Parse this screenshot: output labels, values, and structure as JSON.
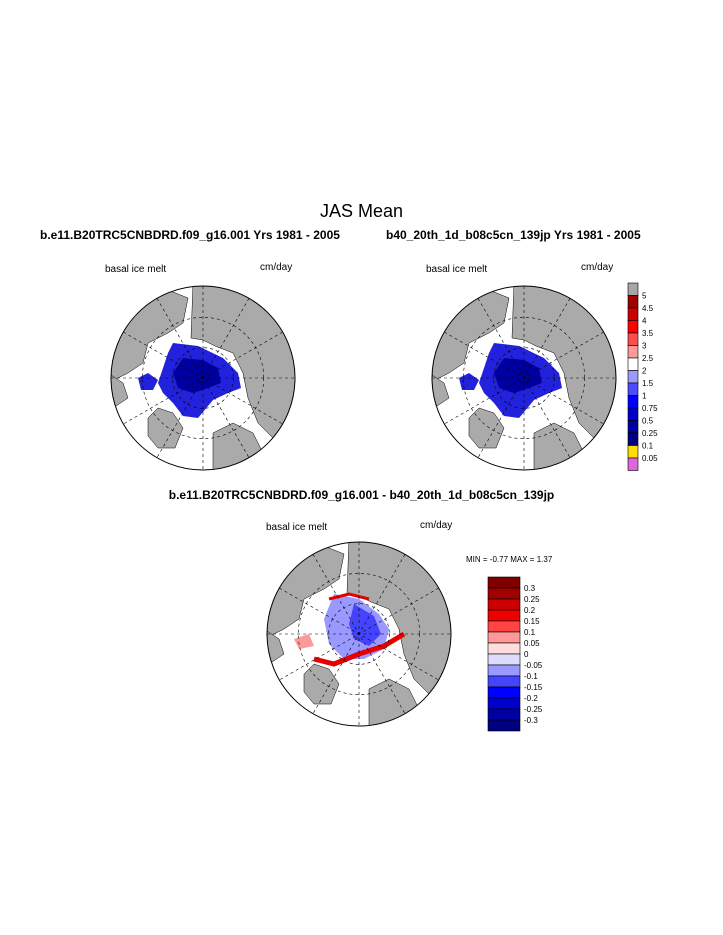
{
  "main_title": "JAS Mean",
  "left_case": "b.e11.B20TRC5CNBDRD.f09_g16.001  Yrs 1981 - 2005",
  "right_case": "b40_20th_1d_b08c5cn_139jp  Yrs 1981 - 2005",
  "var_name": "basal ice melt",
  "units": "cm/day",
  "diff_title": "b.e11.B20TRC5CNBDRD.f09_g16.001 - b40_20th_1d_b08c5cn_139jp",
  "minmax_text": "MIN =  -0.77 MAX =   1.37",
  "colors": {
    "land": "#aaaaaa",
    "ocean": "#ffffff",
    "ice_deep": "#2222dd",
    "ice_dark": "#0000a0",
    "diff_pos": "#e60000",
    "diff_neg": "#4444ff"
  },
  "colorbar_main": {
    "labels": [
      "5",
      "4.5",
      "4",
      "3.5",
      "3",
      "2.5",
      "2",
      "1.5",
      "1",
      "0.75",
      "0.5",
      "0.25",
      "0.1",
      "0.05"
    ],
    "colors": [
      "#a6a6a6",
      "#a00000",
      "#cc0000",
      "#ff0000",
      "#ff4c4c",
      "#ff9999",
      "#ffffff",
      "#9999ff",
      "#4c4cff",
      "#0000ff",
      "#0000cc",
      "#0000a0",
      "#000080",
      "#ffdd00",
      "#dd66dd"
    ]
  },
  "colorbar_diff": {
    "labels": [
      "0.3",
      "0.25",
      "0.2",
      "0.15",
      "0.1",
      "0.05",
      "0",
      "-0.05",
      "-0.1",
      "-0.15",
      "-0.2",
      "-0.25",
      "-0.3"
    ],
    "colors": [
      "#800000",
      "#a00000",
      "#cc0000",
      "#ee0000",
      "#ff4444",
      "#ff9999",
      "#ffdddd",
      "#ddddff",
      "#9999ff",
      "#4444ff",
      "#0000ff",
      "#0000cc",
      "#0000a0",
      "#000080"
    ]
  }
}
